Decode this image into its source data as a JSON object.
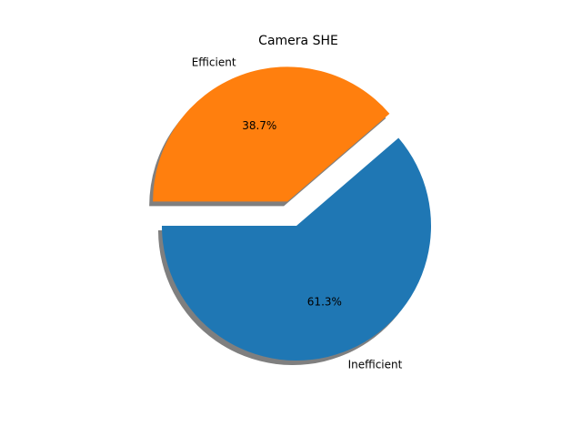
{
  "chart_data": {
    "type": "pie",
    "title": "Camera SHE",
    "slices": [
      {
        "label": "Inefficient",
        "value": 61.3,
        "pct_label": "61.3%",
        "color": "#1f77b4",
        "exploded": false
      },
      {
        "label": "Efficient",
        "value": 38.7,
        "pct_label": "38.7%",
        "color": "#ff7f0e",
        "exploded": true
      }
    ],
    "start_angle_deg": 180,
    "direction": "counterclockwise",
    "shadow": true
  }
}
